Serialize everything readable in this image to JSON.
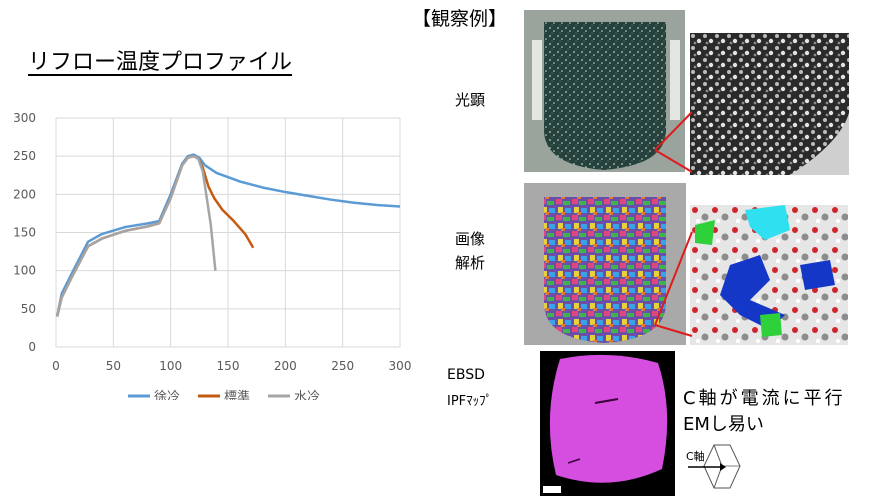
{
  "title": "リフロー温度プロファイル",
  "observation_title": "【観察例】",
  "rows": {
    "optical": "光顕",
    "image_analysis_line1": "画像",
    "image_analysis_line2": "解析",
    "ebsd_line1": "EBSD",
    "ebsd_line2": "IPFﾏｯﾌﾟ"
  },
  "note_line1": "C軸が電流に平行",
  "note_line2": "EMし易い",
  "axis_label": "C軸",
  "colors": {
    "slow": "#5b9bd5",
    "standard": "#c55a11",
    "water": "#a5a5a5",
    "grid": "#d9d9d9",
    "red_line": "#e01b1b",
    "ipf": "#d54ee0"
  },
  "chart_data": {
    "type": "line",
    "title": "",
    "xlabel": "",
    "ylabel": "",
    "xlim": [
      0,
      300
    ],
    "ylim": [
      0,
      300
    ],
    "xticks": [
      0,
      50,
      100,
      150,
      200,
      250,
      300
    ],
    "yticks": [
      0,
      50,
      100,
      150,
      200,
      250,
      300
    ],
    "grid": true,
    "legend_position": "bottom",
    "series": [
      {
        "name": "徐冷",
        "x": [
          1,
          5,
          15,
          28,
          40,
          60,
          80,
          90,
          100,
          110,
          115,
          120,
          125,
          130,
          140,
          160,
          180,
          200,
          220,
          240,
          260,
          280,
          300
        ],
        "y": [
          40,
          70,
          100,
          138,
          148,
          157,
          162,
          165,
          200,
          240,
          250,
          252,
          248,
          238,
          228,
          217,
          209,
          203,
          198,
          193,
          189,
          186,
          184
        ]
      },
      {
        "name": "標準",
        "x": [
          1,
          5,
          15,
          28,
          40,
          60,
          80,
          90,
          100,
          110,
          115,
          120,
          124,
          128,
          133,
          138,
          145,
          155,
          165,
          172
        ],
        "y": [
          40,
          65,
          95,
          132,
          142,
          152,
          158,
          162,
          195,
          238,
          248,
          250,
          247,
          235,
          210,
          195,
          180,
          165,
          148,
          130
        ]
      },
      {
        "name": "水冷",
        "x": [
          1,
          5,
          15,
          28,
          40,
          60,
          80,
          90,
          100,
          110,
          115,
          120,
          124,
          128,
          132,
          135,
          137,
          139
        ],
        "y": [
          40,
          65,
          95,
          132,
          142,
          152,
          158,
          162,
          195,
          238,
          248,
          250,
          247,
          230,
          190,
          160,
          130,
          100
        ]
      }
    ]
  }
}
